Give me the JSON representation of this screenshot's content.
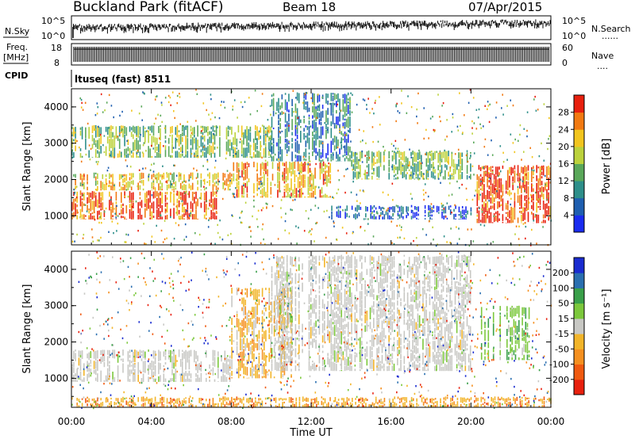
{
  "header": {
    "title": "Buckland Park (fitACF)",
    "beam": "Beam 18",
    "date": "07/Apr/2015"
  },
  "panels": {
    "nsky": {
      "left_label": "N.Sky",
      "right_label": "N.Search",
      "left_ticks": [
        "10^5",
        "10^0"
      ],
      "right_ticks": [
        "10^5",
        "10^0"
      ]
    },
    "freq": {
      "left_label_1": "Freq.",
      "left_label_2": "[MHz]",
      "right_label": "Nave",
      "left_ticks": [
        "18",
        "8"
      ],
      "right_ticks": [
        "60",
        "0"
      ]
    },
    "cpid": {
      "label": "CPID",
      "value": "ltuseq (fast) 8511"
    }
  },
  "chart_data": [
    {
      "type": "heatmap",
      "name": "power",
      "ylabel": "Slant Range [km]",
      "ylim": [
        200,
        4500
      ],
      "yticks": [
        1000,
        2000,
        3000,
        4000
      ],
      "xlim_hours": [
        0,
        24
      ],
      "colorbar": {
        "label": "Power [dB]",
        "ticks": [
          "4",
          "8",
          "12",
          "16",
          "20",
          "24",
          "28"
        ],
        "range": [
          0,
          30
        ],
        "colors": [
          "#1a2cf0",
          "#1f5fb0",
          "#2e8f8a",
          "#5aa85a",
          "#bcd23c",
          "#f2c51e",
          "#f27a12",
          "#e8200e"
        ]
      },
      "echo_regions": [
        {
          "t0": 0,
          "t1": 7.5,
          "r0": 900,
          "r1": 1700,
          "level": 26
        },
        {
          "t0": 0,
          "t1": 8,
          "r0": 1700,
          "r1": 2200,
          "level": 20
        },
        {
          "t0": 0,
          "t1": 10,
          "r0": 2600,
          "r1": 3500,
          "level": 14
        },
        {
          "t0": 8,
          "t1": 13,
          "r0": 1500,
          "r1": 2500,
          "level": 22
        },
        {
          "t0": 10,
          "t1": 14,
          "r0": 2500,
          "r1": 4400,
          "level": 8
        },
        {
          "t0": 13,
          "t1": 20,
          "r0": 900,
          "r1": 1300,
          "level": 5
        },
        {
          "t0": 14,
          "t1": 20,
          "r0": 2000,
          "r1": 2800,
          "level": 14
        },
        {
          "t0": 20.2,
          "t1": 24,
          "r0": 800,
          "r1": 2400,
          "level": 27
        }
      ]
    },
    {
      "type": "heatmap",
      "name": "velocity",
      "ylabel": "Slant Range [km]",
      "ylim": [
        200,
        4500
      ],
      "yticks": [
        1000,
        2000,
        3000,
        4000
      ],
      "xlim_hours": [
        0,
        24
      ],
      "xlabel": "Time UT",
      "xticks": [
        "00:00",
        "04:00",
        "08:00",
        "12:00",
        "16:00",
        "20:00",
        "00:00"
      ],
      "colorbar": {
        "label": "Velocity [m s⁻¹]",
        "ticks": [
          "-200",
          "-100",
          "-50",
          "-15",
          "15",
          "50",
          "100",
          "200"
        ],
        "colors": [
          "#e8200e",
          "#f05a10",
          "#f59020",
          "#f2b52a",
          "#c8c8c4",
          "#7cc83c",
          "#3aa04a",
          "#2a6fb0",
          "#1a2cd0"
        ]
      },
      "echo_regions": [
        {
          "t0": 0,
          "t1": 8,
          "r0": 900,
          "r1": 1800,
          "class": "ground"
        },
        {
          "t0": 8,
          "t1": 11,
          "r0": 1000,
          "r1": 3500,
          "class": "neg-small"
        },
        {
          "t0": 10,
          "t1": 20,
          "r0": 1200,
          "r1": 4400,
          "class": "ground"
        },
        {
          "t0": 20.5,
          "t1": 23,
          "r0": 1500,
          "r1": 3000,
          "class": "pos"
        },
        {
          "t0": 0,
          "t1": 24,
          "r0": 200,
          "r1": 500,
          "class": "neg"
        }
      ]
    }
  ]
}
